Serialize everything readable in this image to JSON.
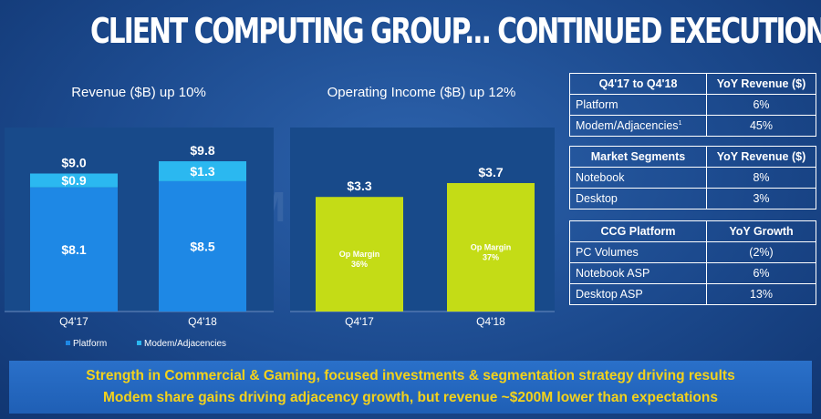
{
  "slide": {
    "title": "CLIENT COMPUTING GROUP... CONTINUED EXECUTION",
    "footer_line1": "Strength in Commercial & Gaming, focused investments & segmentation strategy driving results",
    "footer_line2": "Modem share gains driving adjacency growth, but revenue ~$200M lower than expectations",
    "watermark": "MOOPE.NE"
  },
  "colors": {
    "platform": "#1e88e5",
    "modem": "#2bb8f0",
    "op_income": "#c4dc16",
    "plot_bg": "#184a8a"
  },
  "chart_data": [
    {
      "type": "bar",
      "stacked": true,
      "title": "Revenue ($B) up 10%",
      "categories": [
        "Q4'17",
        "Q4'18"
      ],
      "series": [
        {
          "name": "Platform",
          "values": [
            8.1,
            8.5
          ],
          "labels": [
            "$8.1",
            "$8.5"
          ]
        },
        {
          "name": "Modem/Adjacencies",
          "values": [
            0.9,
            1.3
          ],
          "labels": [
            "$0.9",
            "$1.3"
          ]
        }
      ],
      "totals": [
        "$9.0",
        "$9.8"
      ],
      "ylim": [
        0,
        12
      ],
      "legend": "bottom-left"
    },
    {
      "type": "bar",
      "title": "Operating Income ($B) up 12%",
      "categories": [
        "Q4'17",
        "Q4'18"
      ],
      "values": [
        3.3,
        3.7
      ],
      "labels": [
        "$3.3",
        "$3.7"
      ],
      "annotations": [
        {
          "line1": "Op Margin",
          "line2": "36%"
        },
        {
          "line1": "Op Margin",
          "line2": "37%"
        }
      ],
      "ylim": [
        0,
        5.3
      ]
    }
  ],
  "tables": [
    {
      "headers": [
        "Q4'17 to Q4'18",
        "YoY Revenue ($)"
      ],
      "rows": [
        {
          "label": "Platform",
          "sup": "",
          "value": "6%"
        },
        {
          "label": "Modem/Adjacencies",
          "sup": "1",
          "value": "45%"
        }
      ]
    },
    {
      "headers": [
        "Market Segments",
        "YoY Revenue ($)"
      ],
      "rows": [
        {
          "label": "Notebook",
          "sup": "",
          "value": "8%"
        },
        {
          "label": "Desktop",
          "sup": "",
          "value": "3%"
        }
      ]
    },
    {
      "headers": [
        "CCG Platform",
        "YoY Growth"
      ],
      "rows": [
        {
          "label": "PC Volumes",
          "sup": "",
          "value": "(2%)"
        },
        {
          "label": "Notebook ASP",
          "sup": "",
          "value": "6%"
        },
        {
          "label": "Desktop ASP",
          "sup": "",
          "value": "13%"
        }
      ]
    }
  ]
}
